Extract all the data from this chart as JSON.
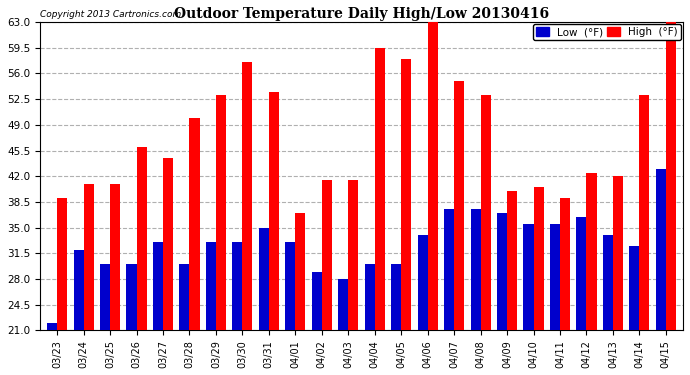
{
  "title": "Outdoor Temperature Daily High/Low 20130416",
  "copyright": "Copyright 2013 Cartronics.com",
  "categories": [
    "03/23",
    "03/24",
    "03/25",
    "03/26",
    "03/27",
    "03/28",
    "03/29",
    "03/30",
    "03/31",
    "04/01",
    "04/02",
    "04/03",
    "04/04",
    "04/05",
    "04/06",
    "04/07",
    "04/08",
    "04/09",
    "04/10",
    "04/11",
    "04/12",
    "04/13",
    "04/14",
    "04/15"
  ],
  "high": [
    39.0,
    41.0,
    41.0,
    46.0,
    44.5,
    50.0,
    53.0,
    57.5,
    53.5,
    37.0,
    41.5,
    41.5,
    59.5,
    58.0,
    63.0,
    55.0,
    53.0,
    40.0,
    40.5,
    39.0,
    42.5,
    42.0,
    53.0,
    63.0
  ],
  "low": [
    22.0,
    32.0,
    30.0,
    30.0,
    33.0,
    30.0,
    33.0,
    33.0,
    35.0,
    33.0,
    29.0,
    28.0,
    30.0,
    30.0,
    34.0,
    37.5,
    37.5,
    37.0,
    35.5,
    35.5,
    36.5,
    34.0,
    32.5,
    43.0
  ],
  "high_color": "#ff0000",
  "low_color": "#0000cc",
  "bg_color": "#ffffff",
  "grid_color": "#b0b0b0",
  "ylim_min": 21.0,
  "ylim_max": 63.0,
  "yticks": [
    21.0,
    24.5,
    28.0,
    31.5,
    35.0,
    38.5,
    42.0,
    45.5,
    49.0,
    52.5,
    56.0,
    59.5,
    63.0
  ],
  "legend_low_label": "Low  (°F)",
  "legend_high_label": "High  (°F)",
  "bar_width": 0.38,
  "figwidth": 6.9,
  "figheight": 3.75,
  "dpi": 100
}
